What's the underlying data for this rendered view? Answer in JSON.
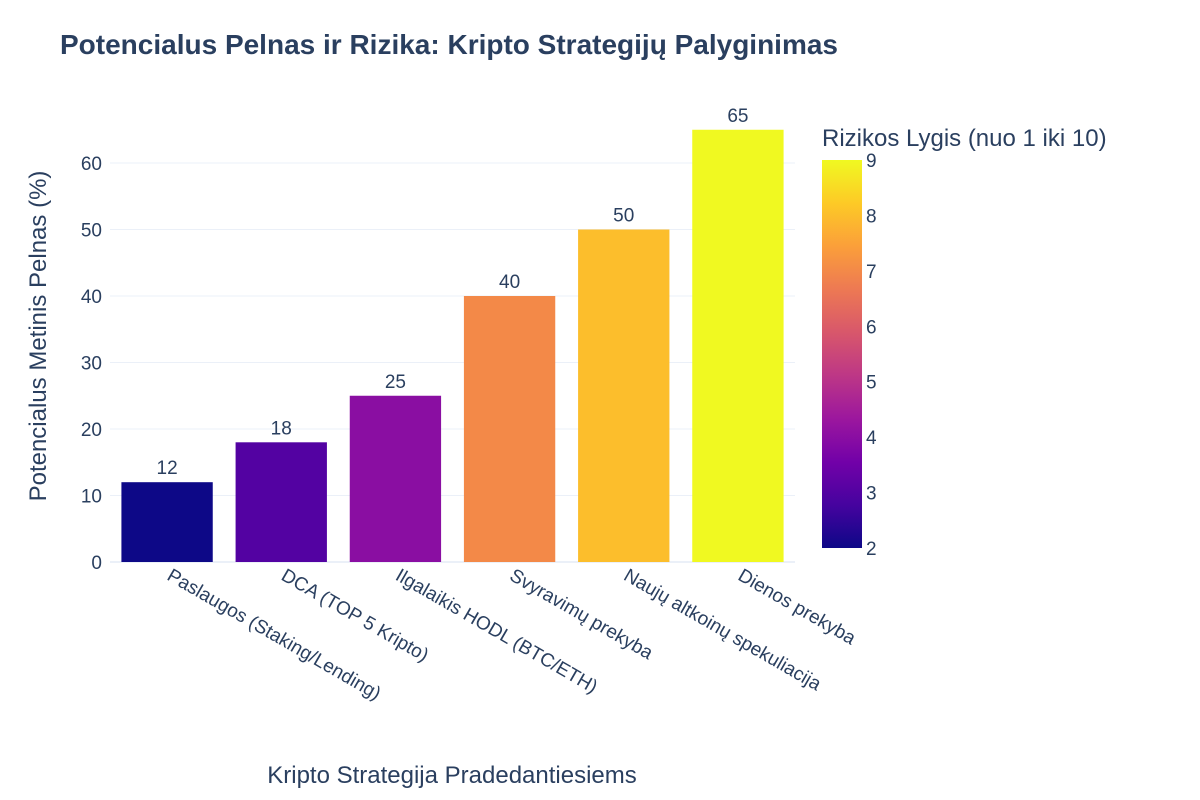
{
  "chart_data": {
    "type": "bar",
    "title": "Potencialus Pelnas ir Rizika: Kripto Strategijų Palyginimas",
    "xlabel": "Kripto Strategija Pradedantiesiems",
    "ylabel": "Potencialus Metinis Pelnas (%)",
    "categories": [
      "Paslaugos (Staking/Lending)",
      "DCA (TOP 5 Kripto)",
      "Ilgalaikis HODL (BTC/ETH)",
      "Svyravimų prekyba",
      "Naujų altkoinų spekuliacija",
      "Dienos prekyba"
    ],
    "values": [
      12,
      18,
      25,
      40,
      50,
      65
    ],
    "risk": [
      2,
      3,
      4,
      7,
      8,
      9
    ],
    "ylim": [
      0,
      65
    ],
    "yticks": [
      0,
      10,
      20,
      30,
      40,
      50,
      60
    ],
    "grid": true,
    "colorbar": {
      "title": "Rizikos Lygis (nuo 1 iki 10)",
      "range": [
        2,
        9
      ],
      "ticks": [
        2,
        3,
        4,
        5,
        6,
        7,
        8,
        9
      ],
      "colorscale": "Plasma",
      "colors": [
        "#0d0887",
        "#46039f",
        "#7201a8",
        "#9c179e",
        "#bd3786",
        "#d8576b",
        "#ed7953",
        "#fb9f3a",
        "#fdca26",
        "#f0f921"
      ]
    }
  }
}
